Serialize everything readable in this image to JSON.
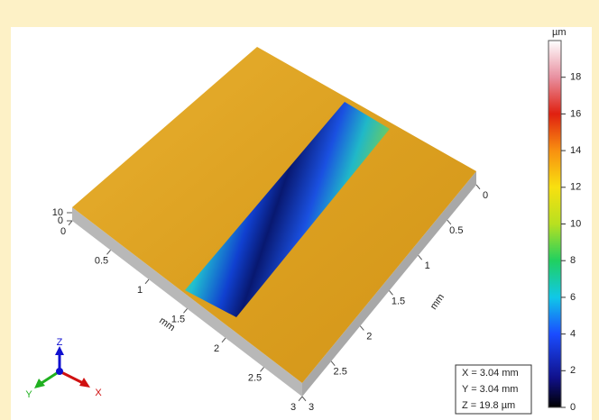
{
  "colorbar": {
    "unit": "µm",
    "lim": [
      0,
      20
    ],
    "ticks": [
      0,
      2,
      4,
      6,
      8,
      10,
      12,
      14,
      16,
      18
    ]
  },
  "axes": {
    "x_label": "mm",
    "y_label": "mm",
    "lim": [
      0,
      3
    ],
    "x_ticks": [
      0,
      0.5,
      1,
      1.5,
      2,
      2.5,
      3
    ],
    "y_ticks": [
      0,
      0.5,
      1,
      1.5,
      2,
      2.5,
      3
    ],
    "z_ticks": [
      0,
      10
    ]
  },
  "triad": {
    "x": "X",
    "y": "Y",
    "z": "Z"
  },
  "info": [
    "X = 3.04 mm",
    "Y = 3.04 mm",
    "Z = 19.8 µm"
  ]
}
